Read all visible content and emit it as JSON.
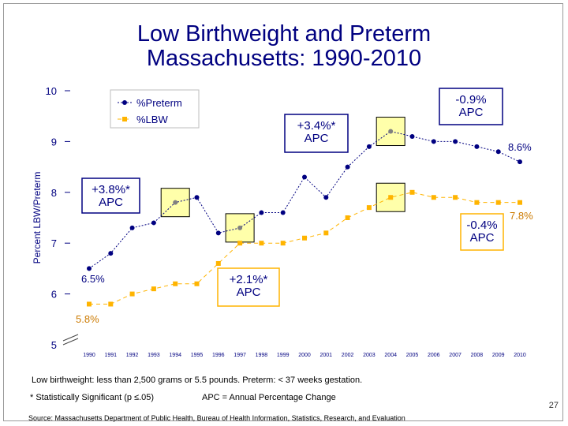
{
  "title_line1": "Low Birthweight and Preterm",
  "title_line2": "Massachusetts: 1990-2010",
  "footnotes": {
    "definition": "Low birthweight: less than 2,500 grams or 5.5 pounds.  Preterm: < 37 weeks gestation.",
    "significance": "* Statistically Significant  (p ≤.05)",
    "apc_def": "APC = Annual Percentage Change",
    "source": "Source:  Massachusetts Department of Public Health, Bureau of Health Information, Statistics, Research, and Evaluation",
    "page_number": "27"
  },
  "chart_data": {
    "type": "line",
    "ylabel": "Percent LBW/Preterm",
    "ylim": [
      5,
      10
    ],
    "yticks": [
      "5",
      "6",
      "7",
      "8",
      "9",
      "10"
    ],
    "x": [
      "1990",
      "1991",
      "1992",
      "1993",
      "1994",
      "1995",
      "1996",
      "1997",
      "1998",
      "1999",
      "2000",
      "2001",
      "2002",
      "2003",
      "2004",
      "2005",
      "2006",
      "2007",
      "2008",
      "2009",
      "2010"
    ],
    "legend_position": "top-left",
    "series": [
      {
        "name": "%Preterm",
        "color": "#000080",
        "marker": "circle",
        "values": [
          6.5,
          6.8,
          7.3,
          7.4,
          7.8,
          7.9,
          7.2,
          7.3,
          7.6,
          7.6,
          8.3,
          7.9,
          8.5,
          8.9,
          9.2,
          9.1,
          9.0,
          9.0,
          8.9,
          8.8,
          8.6
        ]
      },
      {
        "name": "%LBW",
        "color": "#ffb400",
        "marker": "square",
        "values": [
          5.8,
          5.8,
          6.0,
          6.1,
          6.2,
          6.2,
          6.6,
          7.0,
          7.0,
          7.0,
          7.1,
          7.2,
          7.5,
          7.7,
          7.9,
          8.0,
          7.9,
          7.9,
          7.8,
          7.8,
          7.8
        ]
      }
    ],
    "highlighted_points": [
      {
        "x": "1994",
        "value": 7.8
      },
      {
        "x": "1997",
        "value": 7.3
      },
      {
        "x": "2004",
        "value": 9.2
      },
      {
        "x": "2004",
        "value": 7.9
      }
    ],
    "data_labels": [
      {
        "text": "6.5%",
        "x": "1990",
        "value": 6.5,
        "color": "#000080"
      },
      {
        "text": "8.6%",
        "x": "2010",
        "value": 8.6,
        "color": "#000080"
      },
      {
        "text": "5.8%",
        "x": "1990",
        "value": 5.8,
        "color": "#cc7a00"
      },
      {
        "text": "7.8%",
        "x": "2010",
        "value": 7.8,
        "color": "#cc7a00"
      }
    ],
    "annotations": [
      {
        "lines": [
          "+3.8%*",
          "APC"
        ],
        "color": "#000080",
        "border": "#000080"
      },
      {
        "lines": [
          "+3.4%*",
          "APC"
        ],
        "color": "#000080",
        "border": "#000080"
      },
      {
        "lines": [
          "-0.9%",
          "APC"
        ],
        "color": "#000080",
        "border": "#000080"
      },
      {
        "lines": [
          "+2.1%*",
          "APC"
        ],
        "color": "#000080",
        "border": "#ffb400"
      },
      {
        "lines": [
          "-0.4%",
          "APC"
        ],
        "color": "#000080",
        "border": "#ffb400"
      }
    ]
  }
}
